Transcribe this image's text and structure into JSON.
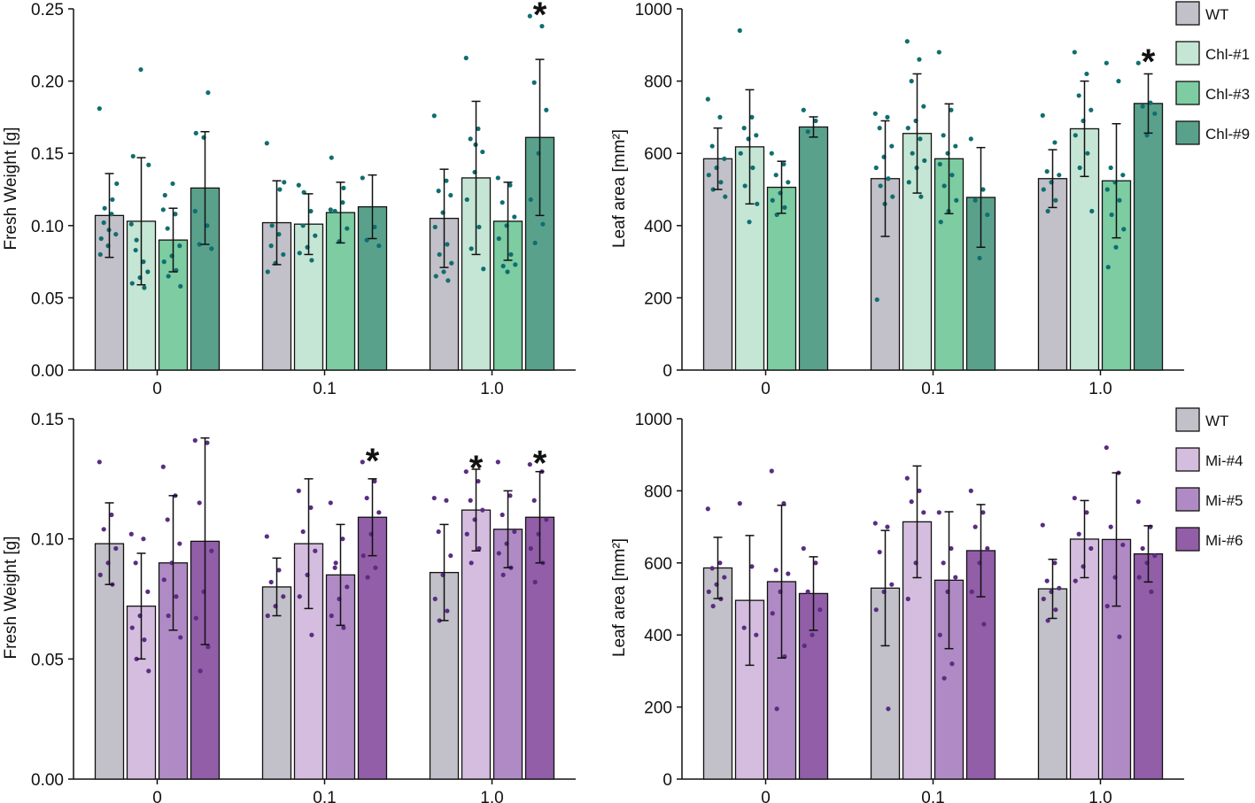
{
  "chart_data": [
    {
      "id": "chl-fresh-weight",
      "type": "bar",
      "ylabel": "Fresh Weight [g]",
      "xlabel": "",
      "categories": [
        "0",
        "0.1",
        "1.0"
      ],
      "ylim": [
        0,
        0.25
      ],
      "yticks": [
        "0.00",
        "0.05",
        "0.10",
        "0.15",
        "0.20",
        "0.25"
      ],
      "series": [
        {
          "name": "WT",
          "values": [
            0.107,
            0.102,
            0.105
          ],
          "errors": [
            0.029,
            0.029,
            0.034
          ],
          "significant": [
            false,
            false,
            false
          ]
        },
        {
          "name": "Chl-#1",
          "values": [
            0.103,
            0.101,
            0.133
          ],
          "errors": [
            0.044,
            0.021,
            0.053
          ],
          "significant": [
            false,
            false,
            false
          ]
        },
        {
          "name": "Chl-#3",
          "values": [
            0.09,
            0.109,
            0.103
          ],
          "errors": [
            0.022,
            0.021,
            0.027
          ],
          "significant": [
            false,
            false,
            false
          ]
        },
        {
          "name": "Chl-#9",
          "values": [
            0.126,
            0.113,
            0.161
          ],
          "errors": [
            0.039,
            0.022,
            0.054
          ],
          "significant": [
            false,
            false,
            true
          ]
        }
      ],
      "points": [
        [
          [
            0.181,
            0.108,
            0.102,
            0.094,
            0.086,
            0.08,
            0.118,
            0.112,
            0.129,
            0.097,
            0.091
          ],
          [
            0.101,
            0.075,
            0.083,
            0.068,
            0.064,
            0.06,
            0.057,
            0.09,
            0.142,
            0.208,
            0.148
          ],
          [
            0.111,
            0.108,
            0.098,
            0.086,
            0.079,
            0.075,
            0.069,
            0.065,
            0.058,
            0.129,
            0.121
          ],
          [
            0.11,
            0.1,
            0.087,
            0.084,
            0.161,
            0.164,
            0.192
          ]
        ],
        [
          [
            0.157,
            0.094,
            0.086,
            0.08,
            0.074,
            0.068,
            0.125,
            0.1,
            0.13
          ],
          [
            0.128,
            0.11,
            0.1,
            0.093,
            0.085,
            0.081,
            0.076,
            0.123
          ],
          [
            0.111,
            0.116,
            0.11,
            0.098,
            0.089,
            0.147,
            0.126
          ],
          [
            0.133,
            0.099,
            0.09,
            0.086
          ]
        ],
        [
          [
            0.176,
            0.131,
            0.124,
            0.121,
            0.109,
            0.099,
            0.087,
            0.08,
            0.074,
            0.068,
            0.065,
            0.062
          ],
          [
            0.216,
            0.167,
            0.16,
            0.151,
            0.137,
            0.118,
            0.099,
            0.084,
            0.07,
            0.156
          ],
          [
            0.133,
            0.128,
            0.116,
            0.106,
            0.1,
            0.091,
            0.08,
            0.072,
            0.073,
            0.068
          ],
          [
            0.245,
            0.238,
            0.199,
            0.18,
            0.15,
            0.118,
            0.101,
            0.088
          ]
        ]
      ]
    },
    {
      "id": "chl-leaf-area",
      "type": "bar",
      "ylabel": "Leaf area [mm²]",
      "xlabel": "",
      "categories": [
        "0",
        "0.1",
        "1.0"
      ],
      "ylim": [
        0,
        1000
      ],
      "yticks": [
        "0",
        "200",
        "400",
        "600",
        "800",
        "1000"
      ],
      "legend": {
        "placement": "top-right",
        "entries": [
          "WT",
          "Chl-#1",
          "Chl-#3",
          "Chl-#9"
        ]
      },
      "series": [
        {
          "name": "WT",
          "values": [
            585,
            530,
            530
          ],
          "errors": [
            85,
            160,
            80
          ],
          "significant": [
            false,
            false,
            false
          ]
        },
        {
          "name": "Chl-#1",
          "values": [
            618,
            655,
            668
          ],
          "errors": [
            158,
            165,
            132
          ],
          "significant": [
            false,
            false,
            false
          ]
        },
        {
          "name": "Chl-#3",
          "values": [
            506,
            585,
            524
          ],
          "errors": [
            72,
            152,
            158
          ],
          "significant": [
            false,
            false,
            false
          ]
        },
        {
          "name": "Chl-#9",
          "values": [
            673,
            478,
            738
          ],
          "errors": [
            28,
            138,
            82
          ],
          "significant": [
            false,
            false,
            true
          ]
        }
      ],
      "points": [
        [
          [
            750,
            700,
            620,
            585,
            560,
            540,
            520,
            500,
            480
          ],
          [
            940,
            700,
            670,
            650,
            640,
            600,
            560,
            510,
            460,
            410
          ],
          [
            600,
            570,
            540,
            520,
            490,
            470,
            450,
            430
          ],
          [
            720,
            690,
            660
          ]
        ],
        [
          [
            710,
            700,
            670,
            620,
            590,
            560,
            530,
            510,
            480,
            460,
            195
          ],
          [
            910,
            860,
            800,
            730,
            690,
            670,
            640,
            600,
            580,
            560,
            520,
            480
          ],
          [
            880,
            720,
            650,
            620,
            600,
            570,
            540,
            510,
            470,
            440,
            410
          ],
          [
            640,
            500,
            470,
            430,
            310
          ]
        ],
        [
          [
            705,
            630,
            550,
            540,
            520,
            500,
            470,
            440
          ],
          [
            880,
            820,
            760,
            720,
            690,
            650,
            600,
            560,
            440
          ],
          [
            850,
            800,
            560,
            540,
            520,
            500,
            470,
            430,
            390,
            340,
            285
          ],
          [
            850,
            740,
            730,
            710,
            650
          ]
        ]
      ]
    },
    {
      "id": "mi-fresh-weight",
      "type": "bar",
      "ylabel": "Fresh Weight [g]",
      "xlabel": "",
      "categories": [
        "0",
        "0.1",
        "1.0"
      ],
      "ylim": [
        0,
        0.15
      ],
      "yticks": [
        "0.00",
        "0.05",
        "0.10",
        "0.15"
      ],
      "series": [
        {
          "name": "WT",
          "values": [
            0.098,
            0.08,
            0.086
          ],
          "errors": [
            0.017,
            0.012,
            0.02
          ],
          "significant": [
            false,
            false,
            false
          ]
        },
        {
          "name": "Mi-#4",
          "values": [
            0.072,
            0.098,
            0.112
          ],
          "errors": [
            0.022,
            0.027,
            0.017
          ],
          "significant": [
            false,
            false,
            true
          ]
        },
        {
          "name": "Mi-#5",
          "values": [
            0.09,
            0.085,
            0.104
          ],
          "errors": [
            0.028,
            0.021,
            0.016
          ],
          "significant": [
            false,
            false,
            false
          ]
        },
        {
          "name": "Mi-#6",
          "values": [
            0.099,
            0.109,
            0.109
          ],
          "errors": [
            0.043,
            0.016,
            0.019
          ],
          "significant": [
            false,
            true,
            true
          ]
        }
      ],
      "points": [
        [
          [
            0.132,
            0.11,
            0.104,
            0.096,
            0.09,
            0.085,
            0.081
          ],
          [
            0.102,
            0.1,
            0.09,
            0.078,
            0.068,
            0.063,
            0.058,
            0.05,
            0.045
          ],
          [
            0.13,
            0.118,
            0.108,
            0.098,
            0.09,
            0.083,
            0.076,
            0.068,
            0.059
          ],
          [
            0.141,
            0.14,
            0.115,
            0.095,
            0.078,
            0.067,
            0.055,
            0.045
          ]
        ],
        [
          [
            0.101,
            0.087,
            0.082,
            0.076,
            0.072,
            0.068
          ],
          [
            0.12,
            0.113,
            0.103,
            0.095,
            0.085,
            0.076,
            0.06
          ],
          [
            0.115,
            0.1,
            0.088,
            0.08,
            0.075,
            0.068,
            0.063,
            0.09
          ],
          [
            0.132,
            0.124,
            0.117,
            0.111,
            0.102,
            0.093,
            0.088,
            0.084
          ]
        ],
        [
          [
            0.117,
            0.116,
            0.103,
            0.093,
            0.085,
            0.075,
            0.07,
            0.066
          ],
          [
            0.128,
            0.124,
            0.116,
            0.112,
            0.108,
            0.102,
            0.096,
            0.09
          ],
          [
            0.132,
            0.118,
            0.11,
            0.103,
            0.098,
            0.094,
            0.088,
            0.085
          ],
          [
            0.131,
            0.128,
            0.116,
            0.108,
            0.102,
            0.096,
            0.09,
            0.082
          ]
        ]
      ]
    },
    {
      "id": "mi-leaf-area",
      "type": "bar",
      "ylabel": "Leaf area [mm²]",
      "xlabel": "",
      "categories": [
        "0",
        "0.1",
        "1.0"
      ],
      "ylim": [
        0,
        1000
      ],
      "yticks": [
        "0",
        "200",
        "400",
        "600",
        "800",
        "1000"
      ],
      "legend": {
        "placement": "top-right",
        "entries": [
          "WT",
          "Mi-#4",
          "Mi-#5",
          "Mi-#6"
        ]
      },
      "series": [
        {
          "name": "WT",
          "values": [
            586,
            530,
            528
          ],
          "errors": [
            85,
            160,
            82
          ],
          "significant": [
            false,
            false,
            false
          ]
        },
        {
          "name": "Mi-#4",
          "values": [
            496,
            714,
            666
          ],
          "errors": [
            180,
            155,
            107
          ],
          "significant": [
            false,
            false,
            false
          ]
        },
        {
          "name": "Mi-#5",
          "values": [
            548,
            552,
            665
          ],
          "errors": [
            212,
            190,
            185
          ],
          "significant": [
            false,
            false,
            false
          ]
        },
        {
          "name": "Mi-#6",
          "values": [
            515,
            634,
            625
          ],
          "errors": [
            102,
            128,
            78
          ],
          "significant": [
            false,
            false,
            false
          ]
        }
      ],
      "points": [
        [
          [
            750,
            600,
            585,
            560,
            540,
            520,
            500,
            480
          ],
          [
            765,
            590,
            420,
            400
          ],
          [
            855,
            765,
            580,
            570,
            520,
            460,
            340,
            195
          ],
          [
            640,
            600,
            520,
            470,
            400,
            370
          ]
        ],
        [
          [
            710,
            700,
            630,
            540,
            520,
            470,
            195
          ],
          [
            835,
            800,
            770,
            740,
            600,
            500
          ],
          [
            740,
            640,
            600,
            560,
            520,
            400,
            320,
            280
          ],
          [
            800,
            740,
            700,
            640,
            600,
            520,
            430
          ]
        ],
        [
          [
            705,
            600,
            550,
            530,
            520,
            500,
            470,
            440
          ],
          [
            780,
            740,
            680,
            640,
            590,
            550
          ],
          [
            920,
            850,
            700,
            650,
            560,
            480,
            395
          ],
          [
            770,
            700,
            640,
            620,
            600,
            560,
            520
          ]
        ]
      ]
    }
  ],
  "significance_marker": "*"
}
